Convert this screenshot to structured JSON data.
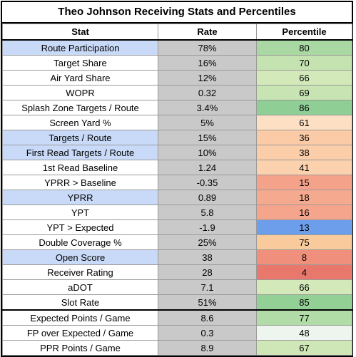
{
  "title": "Theo Johnson Receiving Stats and Percentiles",
  "headers": {
    "stat": "Stat",
    "rate": "Rate",
    "percentile": "Percentile"
  },
  "rows": [
    {
      "stat": "Route Participation",
      "rate": "78%",
      "percentile": "80",
      "stat_bg": "#c9daf8",
      "pct_bg": "#a9d8a3"
    },
    {
      "stat": "Target Share",
      "rate": "16%",
      "percentile": "70",
      "stat_bg": "#ffffff",
      "pct_bg": "#c4e3b1"
    },
    {
      "stat": "Air Yard Share",
      "rate": "12%",
      "percentile": "66",
      "stat_bg": "#ffffff",
      "pct_bg": "#d3e9ba"
    },
    {
      "stat": "WOPR",
      "rate": "0.32",
      "percentile": "69",
      "stat_bg": "#ffffff",
      "pct_bg": "#c8e4b3"
    },
    {
      "stat": "Splash Zone Targets / Route",
      "rate": "3.4%",
      "percentile": "86",
      "stat_bg": "#ffffff",
      "pct_bg": "#8fce94"
    },
    {
      "stat": "Screen Yard %",
      "rate": "5%",
      "percentile": "61",
      "stat_bg": "#ffffff",
      "pct_bg": "#fde0c4"
    },
    {
      "stat": "Targets / Route",
      "rate": "15%",
      "percentile": "36",
      "stat_bg": "#c9daf8",
      "pct_bg": "#fbcaa6"
    },
    {
      "stat": "First Read Targets / Route",
      "rate": "10%",
      "percentile": "38",
      "stat_bg": "#c9daf8",
      "pct_bg": "#fbcda9"
    },
    {
      "stat": "1st Read Baseline",
      "rate": "1.24",
      "percentile": "41",
      "stat_bg": "#ffffff",
      "pct_bg": "#fcd2ae"
    },
    {
      "stat": "YPRR > Baseline",
      "rate": "-0.35",
      "percentile": "15",
      "stat_bg": "#ffffff",
      "pct_bg": "#f4a28a"
    },
    {
      "stat": "YPRR",
      "rate": "0.89",
      "percentile": "18",
      "stat_bg": "#c9daf8",
      "pct_bg": "#f5a98f"
    },
    {
      "stat": "YPT",
      "rate": "5.8",
      "percentile": "16",
      "stat_bg": "#ffffff",
      "pct_bg": "#f4a58c"
    },
    {
      "stat": "YPT > Expected",
      "rate": "-1.9",
      "percentile": "13",
      "stat_bg": "#ffffff",
      "pct_bg": "#6d9eeb"
    },
    {
      "stat": "Double Coverage %",
      "rate": "25%",
      "percentile": "75",
      "stat_bg": "#ffffff",
      "pct_bg": "#f9cb9c"
    },
    {
      "stat": "Open Score",
      "rate": "38",
      "percentile": "8",
      "stat_bg": "#c9daf8",
      "pct_bg": "#ef8f7c"
    },
    {
      "stat": "Receiver Rating",
      "rate": "28",
      "percentile": "4",
      "stat_bg": "#ffffff",
      "pct_bg": "#e8786c"
    },
    {
      "stat": "aDOT",
      "rate": "7.1",
      "percentile": "66",
      "stat_bg": "#ffffff",
      "pct_bg": "#d3e9ba"
    },
    {
      "stat": "Slot Rate",
      "rate": "51%",
      "percentile": "85",
      "stat_bg": "#ffffff",
      "pct_bg": "#93d096"
    },
    {
      "stat": "Expected Points / Game",
      "rate": "8.6",
      "percentile": "77",
      "stat_bg": "#ffffff",
      "pct_bg": "#b2dca7"
    },
    {
      "stat": "FP over Expected / Game",
      "rate": "0.3",
      "percentile": "48",
      "stat_bg": "#ffffff",
      "pct_bg": "#eef5ee"
    },
    {
      "stat": "PPR Points / Game",
      "rate": "8.9",
      "percentile": "67",
      "stat_bg": "#ffffff",
      "pct_bg": "#cfe7b7"
    }
  ]
}
